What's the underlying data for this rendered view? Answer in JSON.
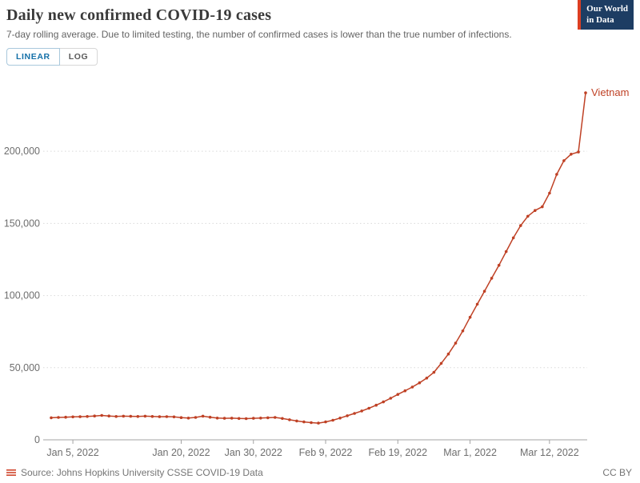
{
  "header": {
    "title": "Daily new confirmed COVID-19 cases",
    "subtitle": "7-day rolling average. Due to limited testing, the number of confirmed cases is lower than the true number of infections.",
    "logo": {
      "line1": "Our World",
      "line2": "in Data"
    }
  },
  "controls": {
    "linear_label": "LINEAR",
    "log_label": "LOG",
    "active": "LINEAR"
  },
  "chart_data": {
    "type": "line",
    "title": "Daily new confirmed COVID-19 cases",
    "grid": "horizontal-dotted",
    "legend_position": "end-of-line-label",
    "end_label": "Vietnam",
    "ylim": [
      0,
      245000
    ],
    "y_ticks": [
      {
        "value": 0,
        "label": "0"
      },
      {
        "value": 50000,
        "label": "50,000"
      },
      {
        "value": 100000,
        "label": "100,000"
      },
      {
        "value": 150000,
        "label": "150,000"
      },
      {
        "value": 200000,
        "label": "200,000"
      }
    ],
    "x_ticks": [
      {
        "index": 3,
        "label": "Jan 5, 2022"
      },
      {
        "index": 18,
        "label": "Jan 20, 2022"
      },
      {
        "index": 28,
        "label": "Jan 30, 2022"
      },
      {
        "index": 38,
        "label": "Feb 9, 2022"
      },
      {
        "index": 48,
        "label": "Feb 19, 2022"
      },
      {
        "index": 58,
        "label": "Mar 1, 2022"
      },
      {
        "index": 69,
        "label": "Mar 12, 2022"
      }
    ],
    "x": [
      "2022-01-02",
      "2022-01-03",
      "2022-01-04",
      "2022-01-05",
      "2022-01-06",
      "2022-01-07",
      "2022-01-08",
      "2022-01-09",
      "2022-01-10",
      "2022-01-11",
      "2022-01-12",
      "2022-01-13",
      "2022-01-14",
      "2022-01-15",
      "2022-01-16",
      "2022-01-17",
      "2022-01-18",
      "2022-01-19",
      "2022-01-20",
      "2022-01-21",
      "2022-01-22",
      "2022-01-23",
      "2022-01-24",
      "2022-01-25",
      "2022-01-26",
      "2022-01-27",
      "2022-01-28",
      "2022-01-29",
      "2022-01-30",
      "2022-01-31",
      "2022-02-01",
      "2022-02-02",
      "2022-02-03",
      "2022-02-04",
      "2022-02-05",
      "2022-02-06",
      "2022-02-07",
      "2022-02-08",
      "2022-02-09",
      "2022-02-10",
      "2022-02-11",
      "2022-02-12",
      "2022-02-13",
      "2022-02-14",
      "2022-02-15",
      "2022-02-16",
      "2022-02-17",
      "2022-02-18",
      "2022-02-19",
      "2022-02-20",
      "2022-02-21",
      "2022-02-22",
      "2022-02-23",
      "2022-02-24",
      "2022-02-25",
      "2022-02-26",
      "2022-02-27",
      "2022-02-28",
      "2022-03-01",
      "2022-03-02",
      "2022-03-03",
      "2022-03-04",
      "2022-03-05",
      "2022-03-06",
      "2022-03-07",
      "2022-03-08",
      "2022-03-09",
      "2022-03-10",
      "2022-03-11",
      "2022-03-12",
      "2022-03-13",
      "2022-03-14",
      "2022-03-15",
      "2022-03-16",
      "2022-03-17"
    ],
    "series": [
      {
        "name": "Vietnam",
        "color": "#bf4125",
        "values": [
          15300,
          15500,
          15700,
          15900,
          16000,
          16200,
          16500,
          16900,
          16500,
          16200,
          16400,
          16300,
          16200,
          16400,
          16200,
          16000,
          16100,
          15900,
          15400,
          15100,
          15500,
          16400,
          15700,
          15100,
          14900,
          15000,
          14800,
          14700,
          14900,
          15100,
          15300,
          15500,
          14800,
          13900,
          13100,
          12400,
          11900,
          11600,
          12400,
          13600,
          15100,
          16700,
          18300,
          20000,
          21900,
          24000,
          26300,
          28800,
          31500,
          34000,
          36600,
          39500,
          42800,
          46800,
          53000,
          59500,
          67000,
          75500,
          85000,
          94000,
          103000,
          112000,
          121000,
          130500,
          140000,
          148500,
          155000,
          159000,
          161500,
          171000,
          184000,
          193500,
          198000,
          199500,
          240500
        ]
      }
    ]
  },
  "footer": {
    "source": "Source: Johns Hopkins University CSSE COVID-19 Data",
    "license": "CC BY"
  },
  "colors": {
    "line": "#bf4125",
    "accent_blue": "#1470a8",
    "logo_bg": "#1d3d63",
    "logo_accent": "#dc3e22",
    "grid": "#d9d9d9",
    "axis": "#a3a3a3"
  }
}
